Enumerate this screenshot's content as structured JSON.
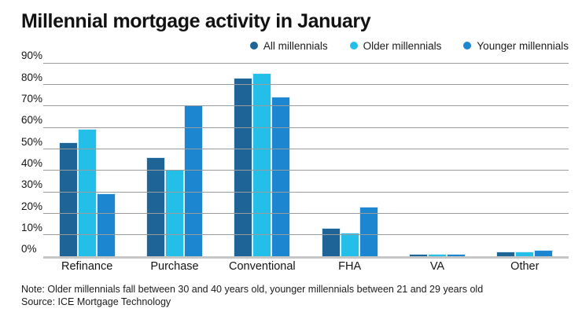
{
  "title": "Millennial mortgage activity in January",
  "legend": [
    {
      "label": "All millennials",
      "color": "#1e6496"
    },
    {
      "label": "Older millennials",
      "color": "#23bfe9"
    },
    {
      "label": "Younger millennials",
      "color": "#1c86d1"
    }
  ],
  "chart_data": {
    "type": "bar",
    "title": "Millennial mortgage activity in January",
    "categories": [
      "Refinance",
      "Purchase",
      "Conventional",
      "FHA",
      "VA",
      "Other"
    ],
    "series": [
      {
        "name": "All millennials",
        "color": "#1e6496",
        "values": [
          53,
          46,
          83,
          13,
          1,
          2
        ]
      },
      {
        "name": "Older millennials",
        "color": "#23bfe9",
        "values": [
          59,
          40,
          85,
          11,
          1,
          2
        ]
      },
      {
        "name": "Younger millennials",
        "color": "#1c86d1",
        "values": [
          29,
          70,
          74,
          23,
          1,
          3
        ]
      }
    ],
    "xlabel": "",
    "ylabel": "",
    "ylim": [
      0,
      90
    ],
    "ytick_step": 10,
    "ytick_suffix": "%",
    "grid": true,
    "legend_position": "top-right"
  },
  "footer": {
    "note": "Note: Older millennials fall between 30 and 40 years old, younger millennials between 21 and 29 years old",
    "source": "Source: ICE Mortgage Technology"
  }
}
